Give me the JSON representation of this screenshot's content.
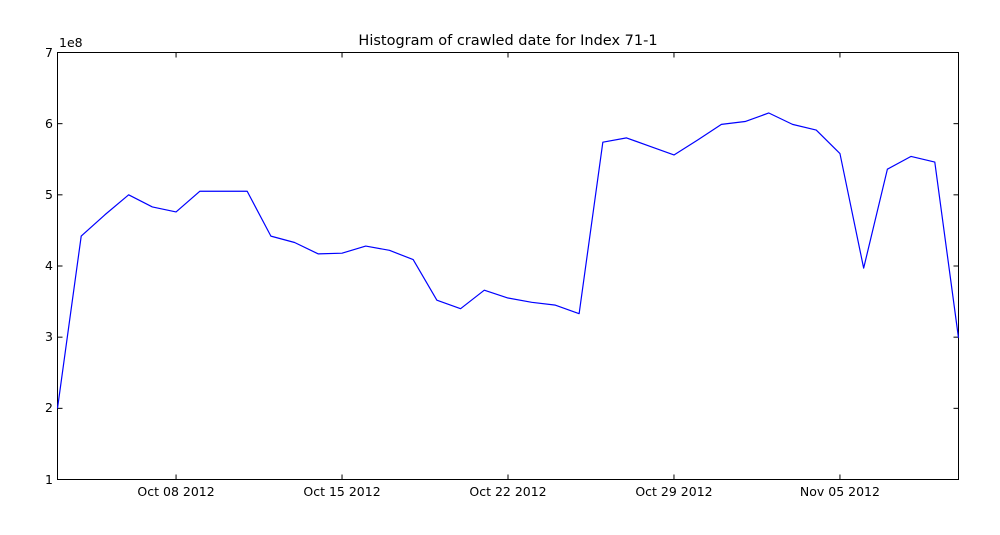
{
  "figure": {
    "title": "Histogram of crawled date for Index 71-1",
    "offset_label": "1e8",
    "background_color": "#ffffff",
    "axis_color": "#000000",
    "line_color": "#0000ff"
  },
  "chart_data": {
    "type": "line",
    "title": "Histogram of crawled date for Index 71-1",
    "xlabel": "",
    "ylabel": "",
    "y_offset_label": "1e8",
    "grid": false,
    "legend": "none",
    "line_color": "#0000ff",
    "ylim_1e8": [
      1,
      7
    ],
    "y_ticks_1e8": [
      1,
      2,
      3,
      4,
      5,
      6,
      7
    ],
    "x_ticks": [
      {
        "day_index": 5,
        "label": "Oct 08 2012"
      },
      {
        "day_index": 12,
        "label": "Oct 15 2012"
      },
      {
        "day_index": 19,
        "label": "Oct 22 2012"
      },
      {
        "day_index": 26,
        "label": "Oct 29 2012"
      },
      {
        "day_index": 33,
        "label": "Nov 05 2012"
      }
    ],
    "dates": [
      "Oct 03 2012",
      "Oct 04 2012",
      "Oct 05 2012",
      "Oct 06 2012",
      "Oct 07 2012",
      "Oct 08 2012",
      "Oct 09 2012",
      "Oct 10 2012",
      "Oct 11 2012",
      "Oct 12 2012",
      "Oct 13 2012",
      "Oct 14 2012",
      "Oct 15 2012",
      "Oct 16 2012",
      "Oct 17 2012",
      "Oct 18 2012",
      "Oct 19 2012",
      "Oct 20 2012",
      "Oct 21 2012",
      "Oct 22 2012",
      "Oct 23 2012",
      "Oct 24 2012",
      "Oct 25 2012",
      "Oct 26 2012",
      "Oct 27 2012",
      "Oct 28 2012",
      "Oct 29 2012",
      "Oct 30 2012",
      "Oct 31 2012",
      "Nov 01 2012",
      "Nov 02 2012",
      "Nov 03 2012",
      "Nov 04 2012",
      "Nov 05 2012",
      "Nov 06 2012",
      "Nov 07 2012",
      "Nov 08 2012",
      "Nov 09 2012",
      "Nov 10 2012"
    ],
    "values_1e8": [
      2.0,
      4.42,
      4.72,
      5.0,
      4.83,
      4.76,
      5.05,
      5.05,
      5.05,
      4.42,
      4.33,
      4.17,
      4.18,
      4.28,
      4.22,
      4.09,
      3.52,
      3.4,
      3.66,
      3.55,
      3.49,
      3.45,
      3.33,
      5.74,
      5.8,
      5.68,
      5.56,
      5.77,
      5.99,
      6.03,
      6.15,
      5.99,
      5.91,
      5.58,
      3.97,
      5.36,
      5.54,
      5.46,
      2.99
    ]
  }
}
